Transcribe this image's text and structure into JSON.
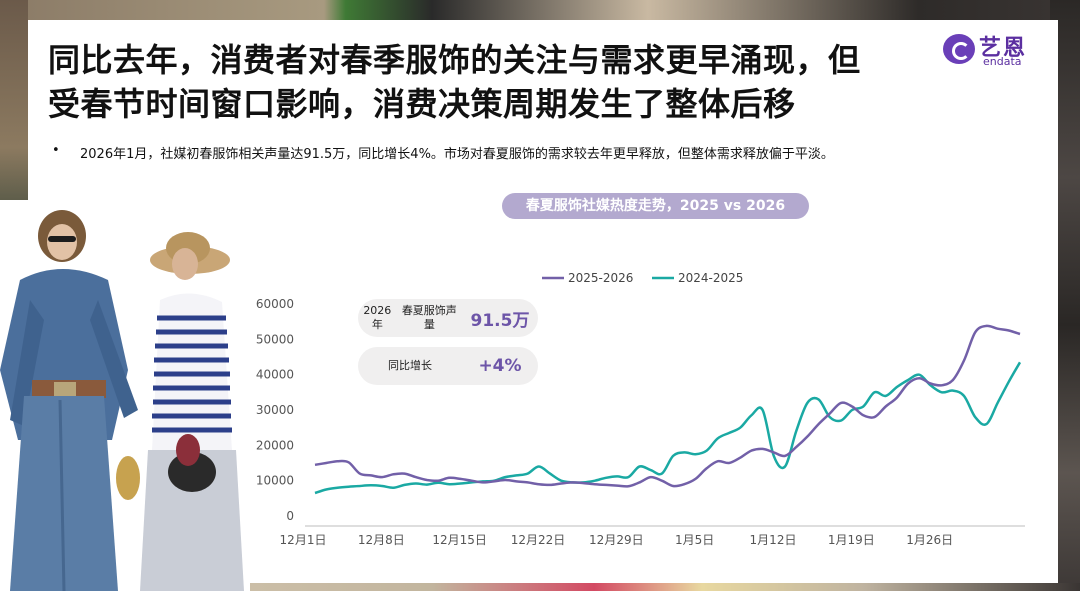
{
  "header": {
    "title_line1": "同比去年，消费者对春季服饰的关注与需求更早涌现，但",
    "title_line2": "受春节时间窗口影响，消费决策周期发生了整体后移"
  },
  "logo": {
    "name_cn": "艺恩",
    "name_en": "endata"
  },
  "bullet": {
    "marker": "•",
    "text": "2026年1月，社媒初春服饰相关声量达91.5万，同比增长4%。市场对春夏服饰的需求较去年更早释放，但整体需求释放偏于平淡。"
  },
  "stats": {
    "volume_label": "2026年\n春夏服饰声量",
    "volume_label_1": "2026年",
    "volume_label_2": "春夏服饰声量",
    "volume_value": "91.5万",
    "growth_label": "同比增长",
    "growth_value": "+4%"
  },
  "colors": {
    "series_a": "#7260a8",
    "series_b": "#1aa9a3",
    "pill": "#b3a9cf",
    "accent": "#6d55a8"
  },
  "chart_data": {
    "type": "line",
    "title": "春夏服饰社媒热度走势，2025 vs 2026",
    "legend_position": "top",
    "grid": false,
    "ylim": [
      0,
      60000
    ],
    "yticks": [
      0,
      10000,
      20000,
      30000,
      40000,
      50000,
      60000
    ],
    "xtick_labels": [
      "12月1日",
      "12月8日",
      "12月15日",
      "12月22日",
      "12月29日",
      "1月5日",
      "1月12日",
      "1月19日",
      "1月26日"
    ],
    "xtick_index": [
      0,
      7,
      14,
      21,
      28,
      35,
      42,
      49,
      56
    ],
    "series": [
      {
        "name": "2025-2026",
        "color": "#7260a8",
        "values": [
          14500,
          15000,
          15500,
          15200,
          12000,
          11500,
          11000,
          11800,
          12000,
          11000,
          10200,
          10000,
          10800,
          10500,
          10000,
          9500,
          9800,
          10200,
          9800,
          9500,
          9000,
          8800,
          9200,
          9500,
          9300,
          9000,
          8800,
          8600,
          8400,
          9500,
          11000,
          10000,
          8500,
          9000,
          10500,
          13500,
          15500,
          15000,
          16500,
          18500,
          19000,
          18000,
          17000,
          19500,
          22500,
          26000,
          29000,
          32000,
          31000,
          28500,
          28000,
          31000,
          33500,
          37500,
          39000,
          37500,
          37000,
          38500,
          44000,
          52000,
          53800,
          53000,
          52500,
          51500
        ]
      },
      {
        "name": "2024-2025",
        "color": "#1aa9a3",
        "values": [
          6500,
          7500,
          8000,
          8300,
          8500,
          8700,
          8500,
          8000,
          8800,
          9200,
          8900,
          9400,
          9000,
          9200,
          9500,
          9800,
          10000,
          11000,
          11500,
          12000,
          14000,
          12000,
          10000,
          9500,
          9500,
          10000,
          10800,
          11200,
          11000,
          14000,
          13000,
          12000,
          17000,
          18000,
          17500,
          18500,
          22000,
          23500,
          25000,
          28500,
          30000,
          17000,
          14000,
          24000,
          32000,
          33000,
          28000,
          27000,
          30000,
          31000,
          35000,
          34000,
          36500,
          38500,
          40000,
          37000,
          35000,
          35500,
          34000,
          28000,
          26000,
          32000,
          38000,
          43500
        ]
      }
    ]
  }
}
